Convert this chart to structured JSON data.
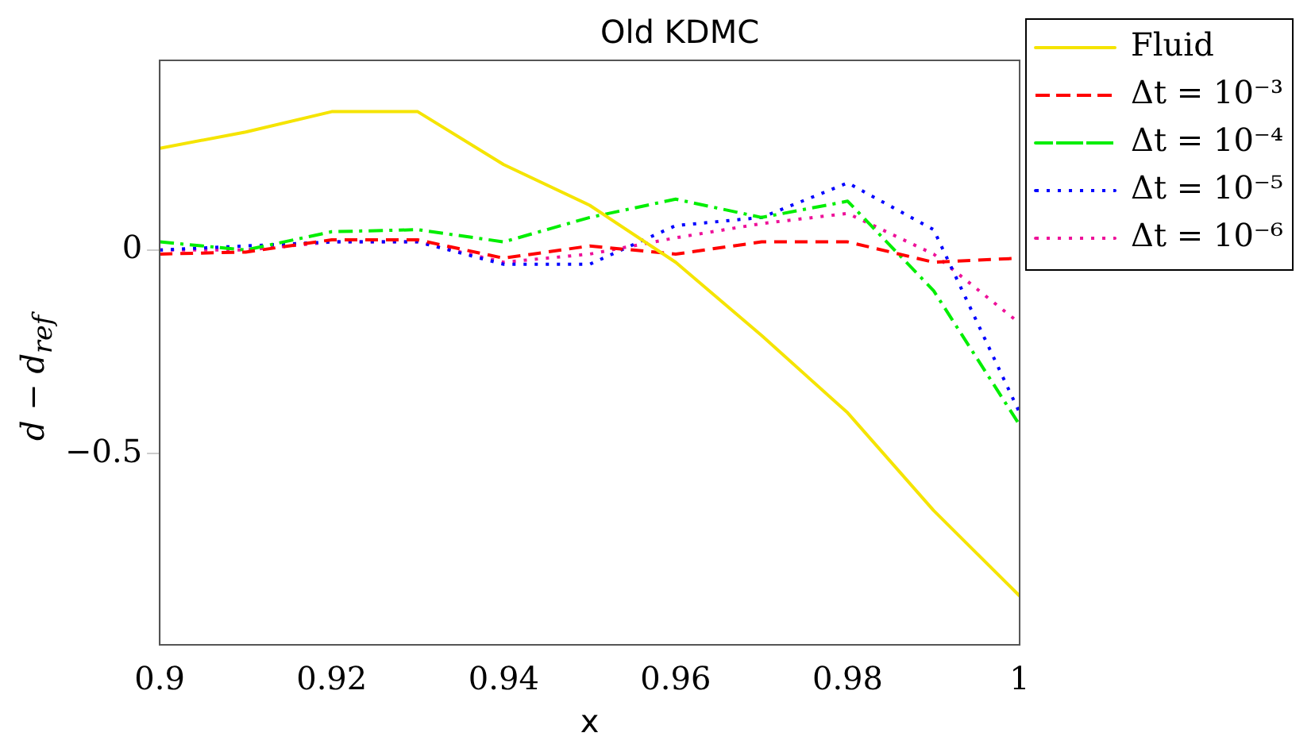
{
  "chart_data": {
    "type": "line",
    "title": "Old KDMC",
    "xlabel": "x",
    "ylabel": "d − d$_{ref}$",
    "x": [
      0.9,
      0.91,
      0.92,
      0.93,
      0.94,
      0.95,
      0.96,
      0.97,
      0.98,
      0.99,
      1.0
    ],
    "series": [
      {
        "name": "Fluid",
        "color": "#f5e400",
        "line_style": "solid",
        "values": [
          0.25,
          0.29,
          0.34,
          0.34,
          0.21,
          0.11,
          -0.03,
          -0.21,
          -0.4,
          -0.64,
          -0.85
        ]
      },
      {
        "name": "Δt = 10⁻³",
        "color": "#ff0000",
        "line_style": "dashed",
        "values": [
          -0.01,
          -0.005,
          0.025,
          0.025,
          -0.02,
          0.01,
          -0.01,
          0.02,
          0.02,
          -0.03,
          -0.02
        ]
      },
      {
        "name": "Δt = 10⁻⁴",
        "color": "#00ee00",
        "line_style": "dashdot",
        "values": [
          0.02,
          0,
          0.045,
          0.05,
          0.02,
          0.08,
          0.125,
          0.08,
          0.12,
          -0.1,
          -0.43
        ]
      },
      {
        "name": "Δt = 10⁻⁵",
        "color": "#0000ff",
        "line_style": "dotted",
        "values": [
          0,
          0.01,
          0.02,
          0.02,
          -0.035,
          -0.035,
          0.06,
          0.08,
          0.165,
          0.05,
          -0.4
        ]
      },
      {
        "name": "Δt = 10⁻⁶",
        "color": "#ee1199",
        "line_style": "dotted",
        "values": [
          0,
          0,
          0.02,
          0.02,
          -0.03,
          -0.01,
          0.03,
          0.065,
          0.09,
          -0.01,
          -0.18
        ]
      }
    ],
    "xlim": [
      0.9,
      1
    ],
    "xticks": [
      0.9,
      0.92,
      0.94,
      0.96,
      0.98,
      1
    ],
    "ylim": [
      -0.97,
      0.466
    ],
    "yticks": [
      {
        "value": -0.5,
        "label": "−0.5"
      },
      0
    ],
    "grid": false,
    "legend": "top right",
    "marker": "none"
  }
}
